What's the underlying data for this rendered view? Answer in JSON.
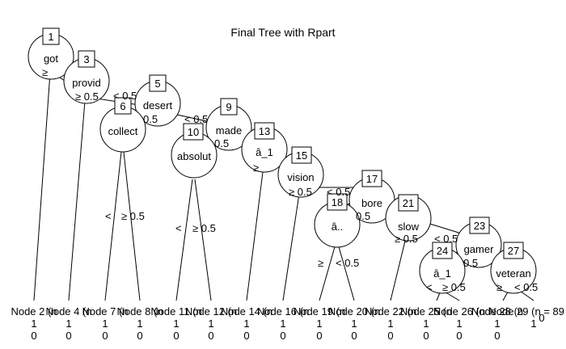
{
  "title": "Final Tree with Rpart",
  "nodes": [
    {
      "id": "1",
      "label": "got",
      "left": "≥",
      "right": ""
    },
    {
      "id": "3",
      "label": "provid",
      "left": "≥ 0.5",
      "right": ""
    },
    {
      "id": "5",
      "label": "desert",
      "left": "< 0.5",
      "right": "0.5"
    },
    {
      "id": "6",
      "label": "collect",
      "left": "<",
      "right": "≥ 0.5"
    },
    {
      "id": "9",
      "label": "made",
      "left": "< 0.5",
      "right": "0.5"
    },
    {
      "id": "10",
      "label": "absolut",
      "left": "<",
      "right": "≥ 0.5"
    },
    {
      "id": "13",
      "label": "â_1",
      "left": "≥",
      "right": ""
    },
    {
      "id": "15",
      "label": "vision",
      "left": "≥ 0.5",
      "right": ""
    },
    {
      "id": "17",
      "label": "bore",
      "left": "< 0.5",
      "right": "0.5"
    },
    {
      "id": "18",
      "label": "â..",
      "left": "≥",
      "right": "< 0.5"
    },
    {
      "id": "21",
      "label": "slow",
      "left": "≥ 0.5",
      "right": ""
    },
    {
      "id": "23",
      "label": "gamer",
      "left": "< 0.5",
      "right": "0.5"
    },
    {
      "id": "24",
      "label": "â_1",
      "left": "<",
      "right": "≥ 0.5"
    },
    {
      "id": "27",
      "label": "veteran",
      "left": "≥",
      "right": "< 0.5"
    }
  ],
  "leaves": [
    {
      "id": "2",
      "text": "Node 2 (n"
    },
    {
      "id": "4",
      "text": "Node 4 (n"
    },
    {
      "id": "7",
      "text": "Node 7 (n"
    },
    {
      "id": "8",
      "text": "Node 8 (n"
    },
    {
      "id": "11",
      "text": "Node 11 (n"
    },
    {
      "id": "12",
      "text": "Node 12 (n"
    },
    {
      "id": "14",
      "text": "Node 14 (n"
    },
    {
      "id": "16",
      "text": "Node 16 (n"
    },
    {
      "id": "19",
      "text": "Node 19 (n"
    },
    {
      "id": "20",
      "text": "Node 20 (n"
    },
    {
      "id": "22",
      "text": "Node 22 (n"
    },
    {
      "id": "25",
      "text": "Node 25 (n"
    },
    {
      "id": "26",
      "text": "Node 26 (n"
    },
    {
      "id": "28",
      "text": "Node 28 (n"
    },
    {
      "id": "29",
      "text": "Node 29 (n = 89"
    }
  ],
  "leaf_axis": {
    "top": "1",
    "bottom": "0"
  }
}
